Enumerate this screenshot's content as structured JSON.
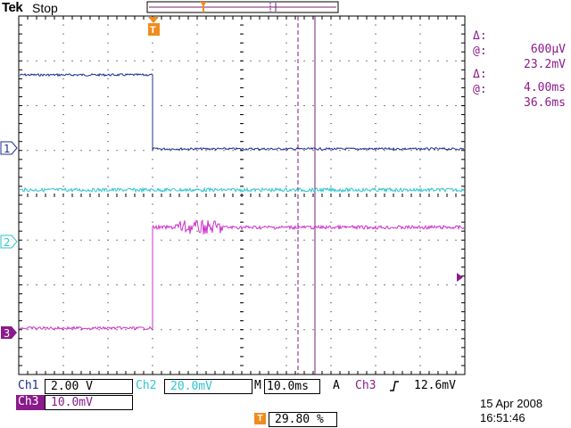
{
  "header": {
    "brand": "Tek",
    "run_state": "Stop"
  },
  "cursors": {
    "delta_v_label": "Δ:",
    "delta_v_value": "600µV",
    "at_v_label": "@:",
    "at_v_value": "23.2mV",
    "delta_t_label": "Δ:",
    "delta_t_value": "4.00ms",
    "at_t_label": "@:",
    "at_t_value": "36.6ms"
  },
  "channel_markers": {
    "ch1": "1",
    "ch2": "2",
    "ch3": "3",
    "trigger": "T"
  },
  "status": {
    "ch1_label": "Ch1",
    "ch1_scale": "2.00 V",
    "ch2_label": "Ch2",
    "ch2_scale": "20.0mV",
    "timebase_label": "M",
    "timebase_value": "10.0ms",
    "trigger_mode": "A",
    "trigger_source": "Ch3",
    "trigger_slope_icon": "rising-edge-icon",
    "trigger_level": "12.6mV",
    "ch3_label": "Ch3",
    "ch3_scale": "10.0mV",
    "trigger_position_icon": "T",
    "trigger_position": "29.80 %",
    "date": "15 Apr 2008",
    "time": "16:51:46"
  },
  "colors": {
    "ch1": "#1f2f8a",
    "ch2": "#2ec4cf",
    "ch3": "#cc33cc",
    "ch3_dark": "#8b1a8b",
    "cursor": "#7a1f7a",
    "trigger": "#f08c1e"
  }
}
